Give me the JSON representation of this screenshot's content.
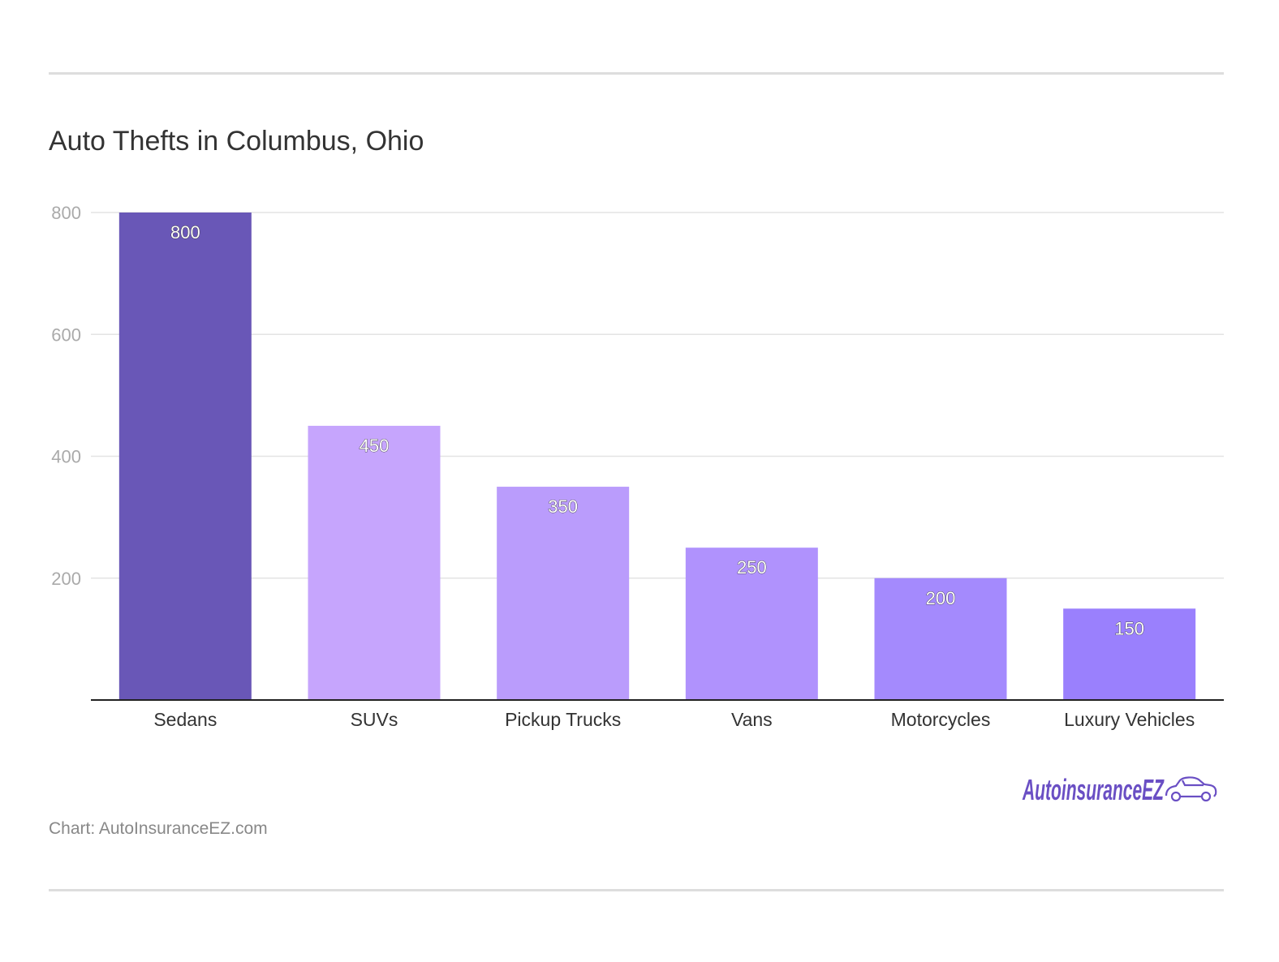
{
  "title": "Auto Thefts in Columbus, Ohio",
  "source": "Chart: AutoInsuranceEZ.com",
  "logo_text": "AutoinsuranceEZ",
  "colors": {
    "bars": [
      "#6957b7",
      "#c6a5fd",
      "#ba9cfc",
      "#b092fd",
      "#a48afd",
      "#9a80fd"
    ],
    "grid": "#e3e3e3",
    "axis": "#222222",
    "tick_label": "#aaaaaa",
    "category_label": "#333333",
    "logo": "#6a4fc4"
  },
  "chart_data": {
    "type": "bar",
    "title": "Auto Thefts in Columbus, Ohio",
    "categories": [
      "Sedans",
      "SUVs",
      "Pickup Trucks",
      "Vans",
      "Motorcycles",
      "Luxury Vehicles"
    ],
    "values": [
      800,
      450,
      350,
      250,
      200,
      150
    ],
    "data_labels": [
      "800",
      "450",
      "350",
      "250",
      "200",
      "150"
    ],
    "yticks": [
      200,
      400,
      600,
      800
    ],
    "ytick_labels": [
      "200",
      "400",
      "600",
      "800"
    ],
    "ylim": [
      0,
      800
    ],
    "xlabel": "",
    "ylabel": "",
    "grid": true,
    "legend": "none"
  }
}
